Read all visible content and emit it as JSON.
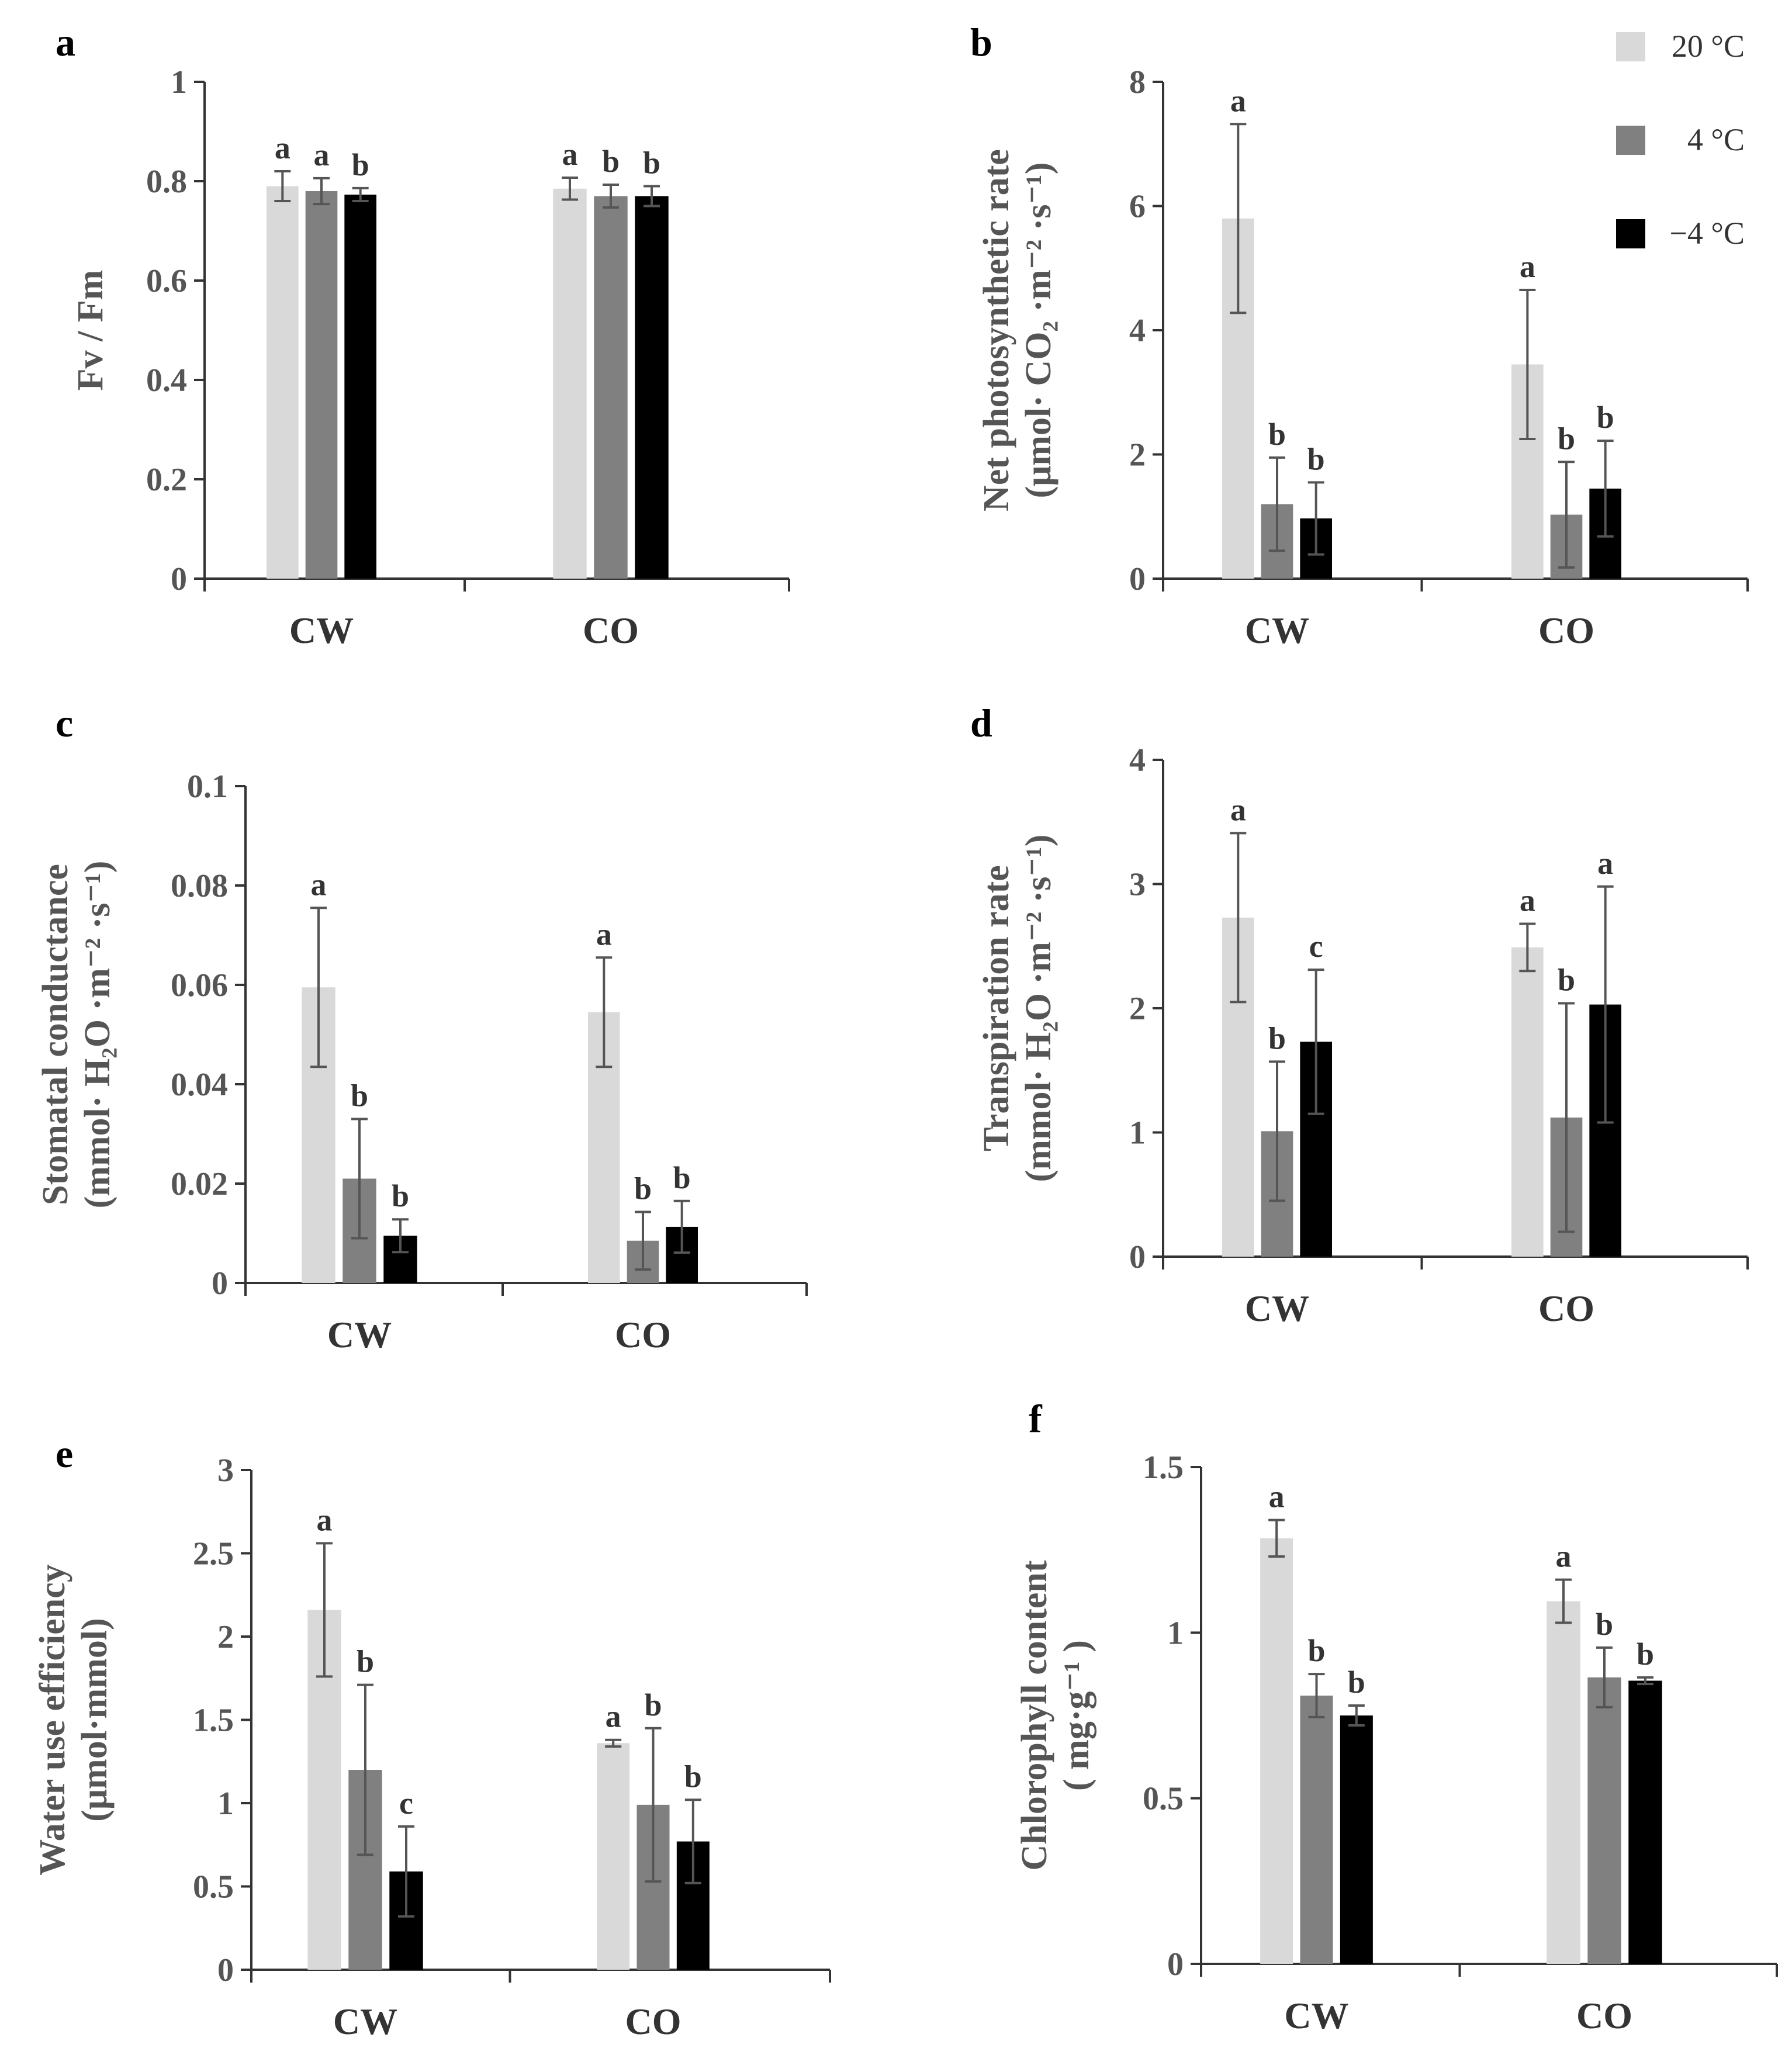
{
  "legend": {
    "entries": [
      {
        "label": "20 °C",
        "color": "#d9d9d9"
      },
      {
        "label": "4 °C",
        "color": "#808080"
      },
      {
        "label": "−4 °C",
        "color": "#000000"
      }
    ]
  },
  "chart_data": [
    {
      "panel": "a",
      "type": "bar",
      "ylabel_lines": [
        "Fv / Fm"
      ],
      "ylim": [
        0,
        1
      ],
      "yticks": [
        0,
        0.2,
        0.4,
        0.6,
        0.8,
        1
      ],
      "ytick_labels": [
        "0",
        "0.2",
        "0.4",
        "0.6",
        "0.8",
        "1"
      ],
      "categories": [
        "CW",
        "CO"
      ],
      "series": [
        {
          "name": "20 °C",
          "color": "#d9d9d9",
          "values": [
            0.79,
            0.785
          ],
          "errors": [
            0.03,
            0.022
          ],
          "sig": [
            "a",
            "a"
          ]
        },
        {
          "name": "4 °C",
          "color": "#808080",
          "values": [
            0.78,
            0.77
          ],
          "errors": [
            0.026,
            0.023
          ],
          "sig": [
            "a",
            "b"
          ]
        },
        {
          "name": "−4 °C",
          "color": "#000000",
          "values": [
            0.773,
            0.77
          ],
          "errors": [
            0.013,
            0.02
          ],
          "sig": [
            "b",
            "b"
          ]
        }
      ]
    },
    {
      "panel": "b",
      "type": "bar",
      "ylabel_lines": [
        "Net photosynthetic rate",
        "(μmol· CO₂ ·m⁻² ·s⁻¹)"
      ],
      "ylim": [
        0,
        8
      ],
      "yticks": [
        0,
        2,
        4,
        6,
        8
      ],
      "ytick_labels": [
        "0",
        "2",
        "4",
        "6",
        "8"
      ],
      "categories": [
        "CW",
        "CO"
      ],
      "series": [
        {
          "name": "20 °C",
          "color": "#d9d9d9",
          "values": [
            5.8,
            3.45
          ],
          "errors": [
            1.52,
            1.2
          ],
          "sig": [
            "a",
            "a"
          ]
        },
        {
          "name": "4 °C",
          "color": "#808080",
          "values": [
            1.2,
            1.03
          ],
          "errors": [
            0.75,
            0.85
          ],
          "sig": [
            "b",
            "b"
          ]
        },
        {
          "name": "−4 °C",
          "color": "#000000",
          "values": [
            0.97,
            1.45
          ],
          "errors": [
            0.58,
            0.77
          ],
          "sig": [
            "b",
            "b"
          ]
        }
      ]
    },
    {
      "panel": "c",
      "type": "bar",
      "ylabel_lines": [
        "Stomatal conductance",
        "(mmol· H₂O ·m⁻² ·s⁻¹)"
      ],
      "ylim": [
        0,
        0.1
      ],
      "yticks": [
        0,
        0.02,
        0.04,
        0.06,
        0.08,
        0.1
      ],
      "ytick_labels": [
        "0",
        "0.02",
        "0.04",
        "0.06",
        "0.08",
        "0.1"
      ],
      "categories": [
        "CW",
        "CO"
      ],
      "series": [
        {
          "name": "20 °C",
          "color": "#d9d9d9",
          "values": [
            0.0595,
            0.0545
          ],
          "errors": [
            0.016,
            0.011
          ],
          "sig": [
            "a",
            "a"
          ]
        },
        {
          "name": "4 °C",
          "color": "#808080",
          "values": [
            0.021,
            0.0085
          ],
          "errors": [
            0.012,
            0.0058
          ],
          "sig": [
            "b",
            "b"
          ]
        },
        {
          "name": "−4 °C",
          "color": "#000000",
          "values": [
            0.0095,
            0.0113
          ],
          "errors": [
            0.0033,
            0.0052
          ],
          "sig": [
            "b",
            "b"
          ]
        }
      ]
    },
    {
      "panel": "d",
      "type": "bar",
      "ylabel_lines": [
        "Transpiration rate",
        "(mmol· H₂O ·m⁻² ·s⁻¹)"
      ],
      "ylim": [
        0,
        4
      ],
      "yticks": [
        0,
        1,
        2,
        3,
        4
      ],
      "ytick_labels": [
        "0",
        "1",
        "2",
        "3",
        "4"
      ],
      "categories": [
        "CW",
        "CO"
      ],
      "series": [
        {
          "name": "20 °C",
          "color": "#d9d9d9",
          "values": [
            2.73,
            2.49
          ],
          "errors": [
            0.68,
            0.19
          ],
          "sig": [
            "a",
            "a"
          ]
        },
        {
          "name": "4 °C",
          "color": "#808080",
          "values": [
            1.01,
            1.12
          ],
          "errors": [
            0.56,
            0.92
          ],
          "sig": [
            "b",
            "b"
          ]
        },
        {
          "name": "−4 °C",
          "color": "#000000",
          "values": [
            1.73,
            2.03
          ],
          "errors": [
            0.58,
            0.95
          ],
          "sig": [
            "c",
            "a"
          ]
        }
      ]
    },
    {
      "panel": "e",
      "type": "bar",
      "ylabel_lines": [
        "Water use efficiency",
        "(μmol·mmol)"
      ],
      "ylim": [
        0,
        3
      ],
      "yticks": [
        0,
        0.5,
        1,
        1.5,
        2,
        2.5,
        3
      ],
      "ytick_labels": [
        "0",
        "0.5",
        "1",
        "1.5",
        "2",
        "2.5",
        "3"
      ],
      "categories": [
        "CW",
        "CO"
      ],
      "series": [
        {
          "name": "20 °C",
          "color": "#d9d9d9",
          "values": [
            2.16,
            1.36
          ],
          "errors": [
            0.4,
            0.02
          ],
          "sig": [
            "a",
            "a"
          ]
        },
        {
          "name": "4 °C",
          "color": "#808080",
          "values": [
            1.2,
            0.99
          ],
          "errors": [
            0.51,
            0.46
          ],
          "sig": [
            "b",
            "b"
          ]
        },
        {
          "name": "−4 °C",
          "color": "#000000",
          "values": [
            0.59,
            0.77
          ],
          "errors": [
            0.27,
            0.25
          ],
          "sig": [
            "c",
            "b"
          ]
        }
      ]
    },
    {
      "panel": "f",
      "type": "bar",
      "ylabel_lines": [
        "Chlorophyll content",
        "( mg·g⁻¹ )"
      ],
      "ylim": [
        0,
        1.5
      ],
      "yticks": [
        0,
        0.5,
        1,
        1.5
      ],
      "ytick_labels": [
        "0",
        "0.5",
        "1",
        "1.5"
      ],
      "categories": [
        "CW",
        "CO"
      ],
      "series": [
        {
          "name": "20 °C",
          "color": "#d9d9d9",
          "values": [
            1.285,
            1.095
          ],
          "errors": [
            0.055,
            0.065
          ],
          "sig": [
            "a",
            "a"
          ]
        },
        {
          "name": "4 °C",
          "color": "#808080",
          "values": [
            0.81,
            0.865
          ],
          "errors": [
            0.065,
            0.09
          ],
          "sig": [
            "b",
            "b"
          ]
        },
        {
          "name": "−4 °C",
          "color": "#000000",
          "values": [
            0.75,
            0.855
          ],
          "errors": [
            0.03,
            0.01
          ],
          "sig": [
            "b",
            "b"
          ]
        }
      ]
    }
  ]
}
